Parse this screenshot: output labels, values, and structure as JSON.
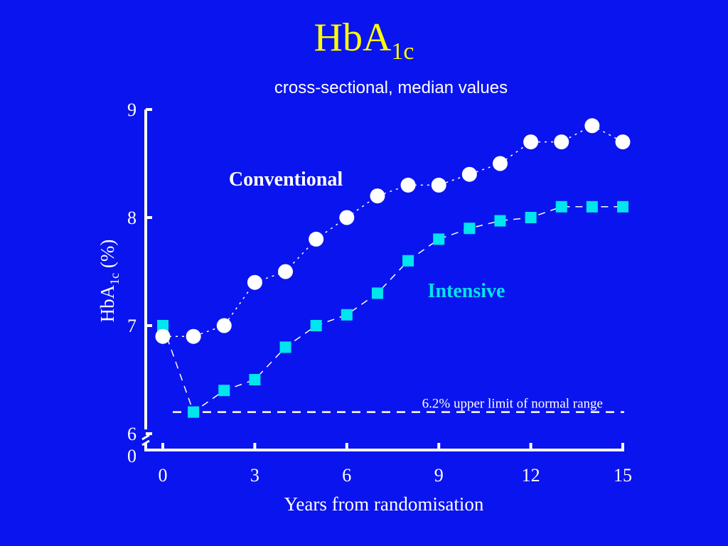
{
  "slide": {
    "title_main": "HbA",
    "title_sub": "1c",
    "subtitle": "cross-sectional, median values"
  },
  "colors": {
    "background": "#0a14ee",
    "title": "#ffff00",
    "axis": "#ffffff",
    "conventional": "#ffffff",
    "intensive": "#00e5ee"
  },
  "chart_data": {
    "type": "line",
    "xlabel": "Years from randomisation",
    "ylabel_main": "HbA",
    "ylabel_sub": "1c",
    "ylabel_unit": "(%)",
    "x_ticks": [
      0,
      3,
      6,
      9,
      12,
      15
    ],
    "y_ticks": [
      6,
      7,
      8,
      9
    ],
    "y_zero_label": "0",
    "xlim": [
      0,
      15
    ],
    "ylim": [
      6,
      9
    ],
    "y_axis_break": true,
    "grid": false,
    "series": [
      {
        "name": "Conventional",
        "marker": "circle",
        "line": "dotted",
        "x": [
          0,
          1,
          2,
          3,
          4,
          5,
          6,
          7,
          8,
          9,
          10,
          11,
          12,
          13,
          14,
          15
        ],
        "values": [
          6.9,
          6.9,
          7.0,
          7.4,
          7.5,
          7.8,
          8.0,
          8.2,
          8.3,
          8.3,
          8.4,
          8.5,
          8.7,
          8.7,
          8.85,
          8.7
        ]
      },
      {
        "name": "Intensive",
        "marker": "square",
        "line": "dashed",
        "x": [
          0,
          1,
          2,
          3,
          4,
          5,
          6,
          7,
          8,
          9,
          10,
          11,
          12,
          13,
          14,
          15
        ],
        "values": [
          7.0,
          6.2,
          6.4,
          6.5,
          6.8,
          7.0,
          7.1,
          7.3,
          7.6,
          7.8,
          7.9,
          7.97,
          8.0,
          8.1,
          8.1,
          8.1
        ]
      }
    ],
    "reference_line": {
      "y": 6.2,
      "label": "6.2% upper limit of normal range"
    }
  }
}
